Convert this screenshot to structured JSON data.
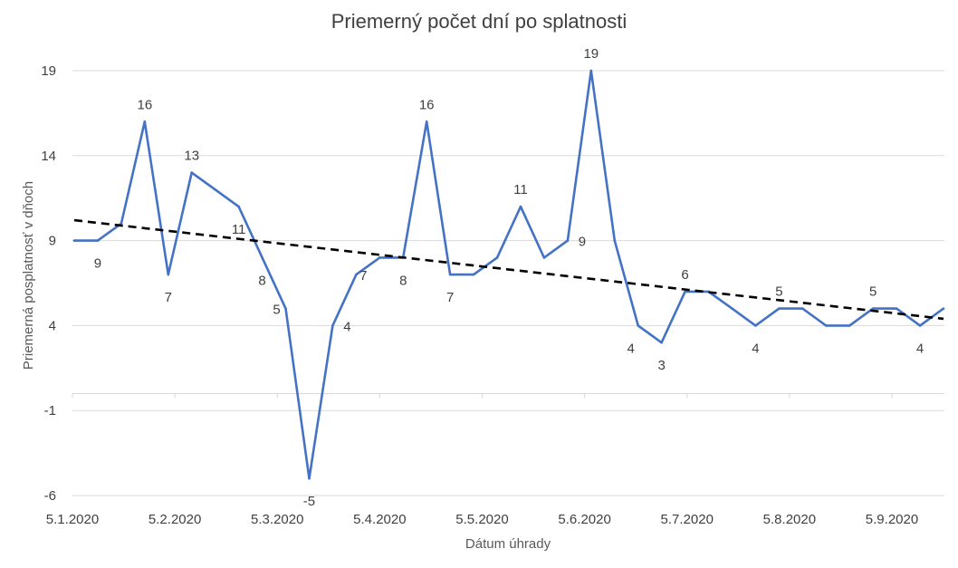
{
  "chart_data": {
    "type": "line",
    "title": "Priemerný počet dní po splatnosti",
    "xlabel": "Dátum úhrady",
    "ylabel": "Priemerná posplatnosť v dňoch",
    "ylim": [
      -6,
      19
    ],
    "y_ticks": [
      19,
      14,
      9,
      4,
      -1,
      -6
    ],
    "x_ticks": [
      "5.1.2020",
      "5.2.2020",
      "5.3.2020",
      "5.4.2020",
      "5.5.2020",
      "5.6.2020",
      "5.7.2020",
      "5.8.2020",
      "5.9.2020"
    ],
    "grid": true,
    "legend": "none",
    "colors": {
      "series": "#4472c4",
      "trend": "#000000"
    },
    "series": [
      {
        "values": [
          9,
          9,
          10,
          16,
          7,
          13,
          12,
          11,
          8,
          5,
          -5,
          4,
          7,
          8,
          8,
          16,
          7,
          7,
          8,
          11,
          8,
          9,
          19,
          9,
          4,
          3,
          6,
          6,
          5,
          4,
          5,
          5,
          4,
          4,
          5,
          5,
          4,
          5
        ],
        "data_labels": [
          {
            "index": 1,
            "text": "9"
          },
          {
            "index": 3,
            "text": "16"
          },
          {
            "index": 4,
            "text": "7"
          },
          {
            "index": 5,
            "text": "13"
          },
          {
            "index": 7,
            "text": "11"
          },
          {
            "index": 8,
            "text": "8"
          },
          {
            "index": 9,
            "text": "5"
          },
          {
            "index": 10,
            "text": "-5"
          },
          {
            "index": 11,
            "text": "4"
          },
          {
            "index": 12,
            "text": "7"
          },
          {
            "index": 14,
            "text": "8"
          },
          {
            "index": 15,
            "text": "16"
          },
          {
            "index": 16,
            "text": "7"
          },
          {
            "index": 19,
            "text": "11"
          },
          {
            "index": 21,
            "text": "9"
          },
          {
            "index": 22,
            "text": "19"
          },
          {
            "index": 24,
            "text": "4"
          },
          {
            "index": 25,
            "text": "3"
          },
          {
            "index": 26,
            "text": "6"
          },
          {
            "index": 29,
            "text": "4"
          },
          {
            "index": 30,
            "text": "5"
          },
          {
            "index": 34,
            "text": "5"
          },
          {
            "index": 36,
            "text": "4"
          }
        ]
      }
    ],
    "trendline": {
      "type": "linear",
      "style": "dashed",
      "start": 10.2,
      "end": 4.4
    }
  }
}
